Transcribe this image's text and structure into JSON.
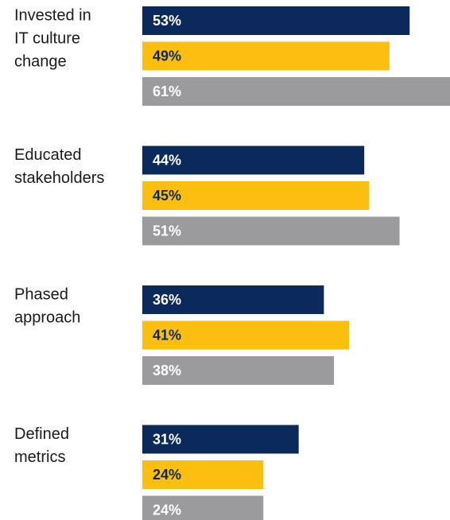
{
  "chart_data": {
    "type": "bar",
    "categories": [
      [
        "Invested in",
        "IT culture",
        "change"
      ],
      [
        "Educated",
        "stakeholders"
      ],
      [
        "Phased",
        "approach"
      ],
      [
        "Defined",
        "metrics"
      ]
    ],
    "series": [
      {
        "color": "#0b2a5b",
        "values": [
          53,
          44,
          36,
          31
        ],
        "value_labels": [
          "53%",
          "44%",
          "36%",
          "31%"
        ]
      },
      {
        "color": "#fdbf0f",
        "values": [
          49,
          45,
          41,
          24
        ],
        "value_labels": [
          "49%",
          "45%",
          "41%",
          "24%"
        ]
      },
      {
        "color": "#9b9b9e",
        "values": [
          61,
          51,
          38,
          24
        ],
        "value_labels": [
          "61%",
          "51%",
          "38%",
          "24%"
        ]
      }
    ]
  }
}
